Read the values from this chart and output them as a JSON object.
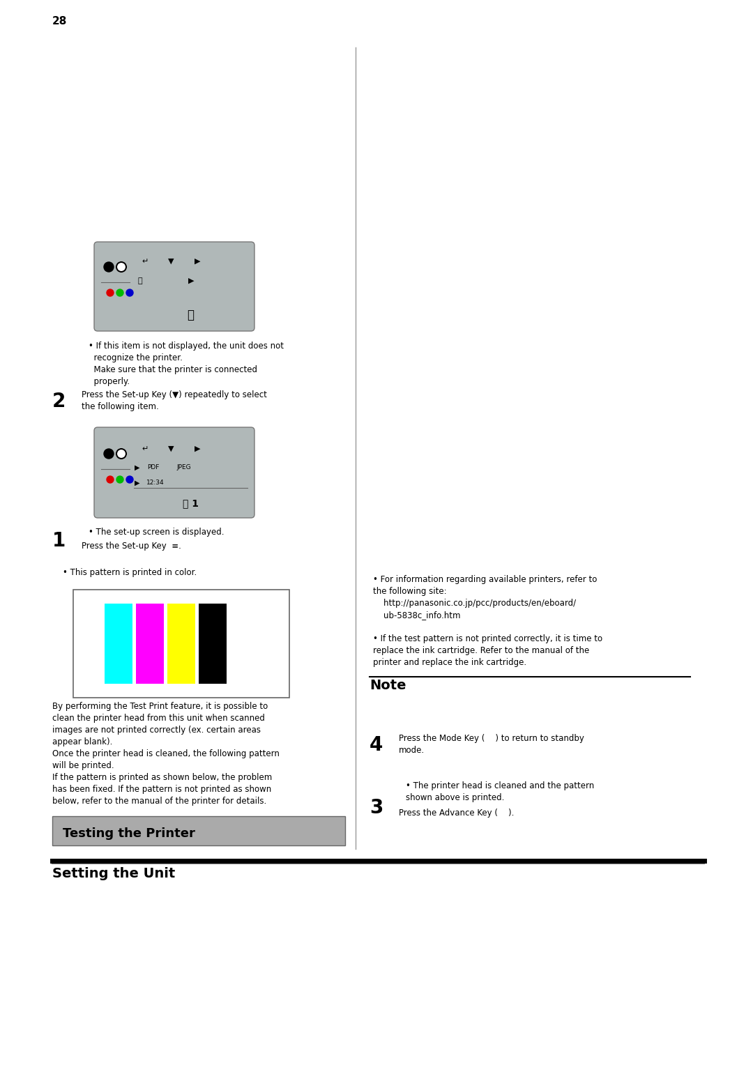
{
  "page_bg": "#ffffff",
  "section_title": "Setting the Unit",
  "section_title_size": 14,
  "subsection_title": "Testing the Printer",
  "subsection_title_size": 13,
  "subsection_bg": "#aaaaaa",
  "body_text_size": 8.5,
  "note_title_size": 14,
  "intro_text": "By performing the Test Print feature, it is possible to\nclean the printer head from this unit when scanned\nimages are not printed correctly (ex. certain areas\nappear blank).\nOnce the printer head is cleaned, the following pattern\nwill be printed.\nIf the pattern is printed as shown below, the problem\nhas been fixed. If the pattern is not printed as shown\nbelow, refer to the manual of the printer for details.",
  "bullet_pattern": "This pattern is printed in color.",
  "step2_title": "Press the Set-up Key (▼) repeatedly to select\nthe following item.",
  "step3_title": "Press the Advance Key (    ).",
  "step3_bullet": "The printer head is cleaned and the pattern\nshown above is printed.",
  "step4_title": "Press the Mode Key (    ) to return to standby\nmode.",
  "note_title": "Note",
  "note_bullet1": "If the test pattern is not printed correctly, it is time to\nreplace the ink cartridge. Refer to the manual of the\nprinter and replace the ink cartridge.",
  "note_bullet2": "For information regarding available printers, refer to\nthe following site:\n    http://panasonic.co.jp/pcc/products/en/eboard/\n    ub-5838c_info.htm",
  "page_number": "28",
  "cmyk_colors": [
    "#00ffff",
    "#ff00ff",
    "#ffff00",
    "#000000"
  ]
}
